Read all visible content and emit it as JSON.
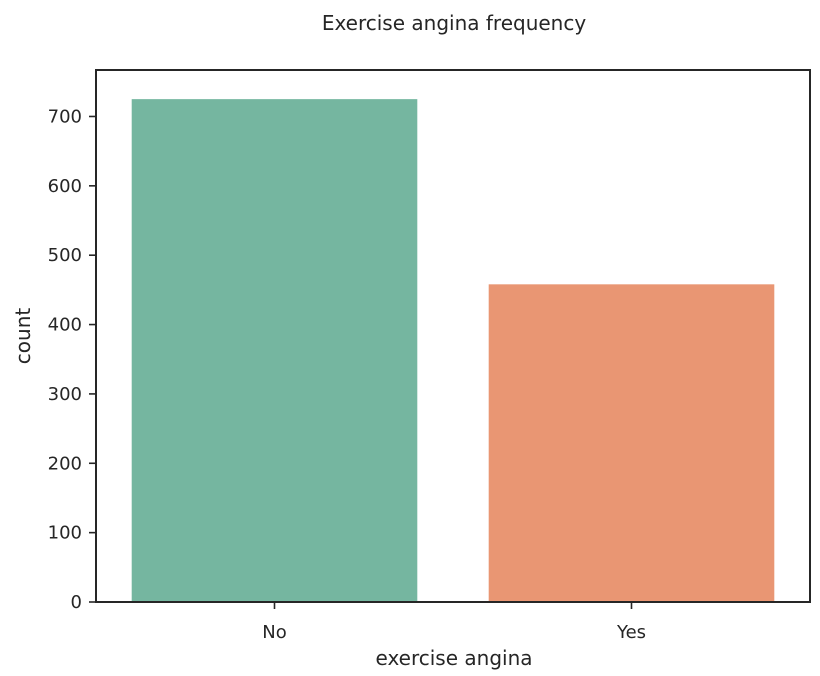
{
  "chart_data": {
    "type": "bar",
    "title": "Exercise angina frequency",
    "xlabel": "exercise angina",
    "ylabel": "count",
    "categories": [
      "No",
      "Yes"
    ],
    "values": [
      725,
      458
    ],
    "colors": [
      "#75b6a0",
      "#e99673"
    ],
    "ylim": [
      0,
      767
    ],
    "yticks": [
      0,
      100,
      200,
      300,
      400,
      500,
      600,
      700
    ],
    "grid": false,
    "legend": "none"
  }
}
